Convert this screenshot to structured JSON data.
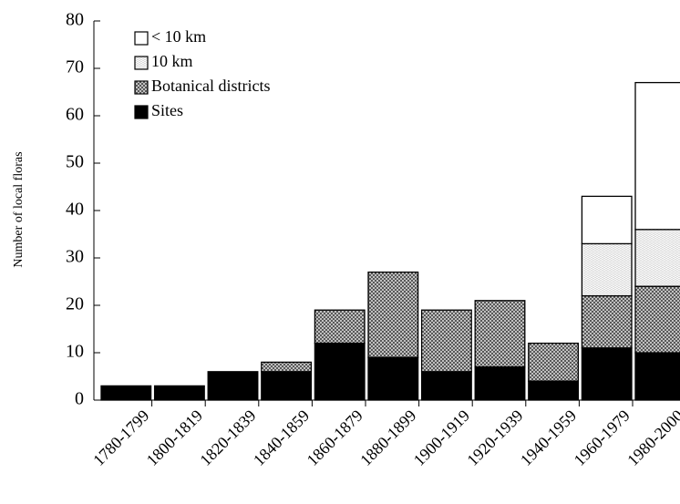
{
  "chart_data": {
    "type": "bar",
    "stacked": true,
    "y_label": "Number of local floras",
    "categories": [
      "1780-1799",
      "1800-1819",
      "1820-1839",
      "1840-1859",
      "1860-1879",
      "1880-1899",
      "1900-1919",
      "1920-1939",
      "1940-1959",
      "1960-1979",
      "1980-2000"
    ],
    "series": [
      {
        "name": "Sites",
        "color": "#000000",
        "values": [
          3,
          3,
          6,
          6,
          12,
          9,
          6,
          7,
          4,
          11,
          10
        ]
      },
      {
        "name": "Botanical districts",
        "color": "#555555",
        "values": [
          0,
          0,
          0,
          2,
          7,
          18,
          13,
          14,
          8,
          11,
          14
        ]
      },
      {
        "name": "10 km",
        "color": "#cccccc",
        "values": [
          0,
          0,
          0,
          0,
          0,
          0,
          0,
          0,
          0,
          11,
          12
        ]
      },
      {
        "name": "< 10 km",
        "color": "#ffffff",
        "values": [
          0,
          0,
          0,
          0,
          0,
          0,
          0,
          0,
          0,
          10,
          31
        ]
      }
    ],
    "ylim": [
      0,
      80
    ],
    "yticks": [
      0,
      10,
      20,
      30,
      40,
      50,
      60,
      70,
      80
    ]
  }
}
